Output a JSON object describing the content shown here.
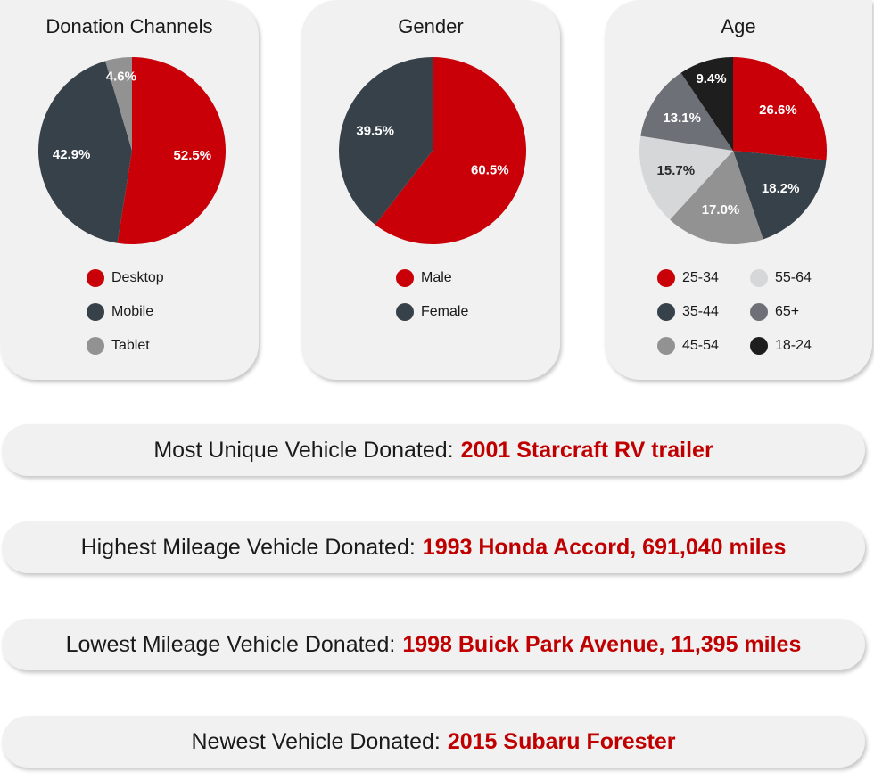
{
  "colors": {
    "red": "#c90008",
    "dark": "#37414a",
    "gray": "#929292",
    "light": "#d6d7d8",
    "slate": "#6d7177",
    "black": "#1e1e1e"
  },
  "chart_data": [
    {
      "type": "pie",
      "title": "Donation Channels",
      "slices": [
        {
          "label": "Desktop",
          "value": 52.5,
          "text": "52.5%",
          "color": "#c90008"
        },
        {
          "label": "Mobile",
          "value": 42.9,
          "text": "42.9%",
          "color": "#37414a"
        },
        {
          "label": "Tablet",
          "value": 4.6,
          "text": "4.6%",
          "color": "#929292"
        }
      ]
    },
    {
      "type": "pie",
      "title": "Gender",
      "slices": [
        {
          "label": "Male",
          "value": 60.5,
          "text": "60.5%",
          "color": "#c90008"
        },
        {
          "label": "Female",
          "value": 39.5,
          "text": "39.5%",
          "color": "#37414a"
        }
      ]
    },
    {
      "type": "pie",
      "title": "Age",
      "slices": [
        {
          "label": "25-34",
          "value": 26.6,
          "text": "26.6%",
          "color": "#c90008"
        },
        {
          "label": "35-44",
          "value": 18.2,
          "text": "18.2%",
          "color": "#37414a"
        },
        {
          "label": "45-54",
          "value": 17.0,
          "text": "17.0%",
          "color": "#929292"
        },
        {
          "label": "55-64",
          "value": 15.7,
          "text": "15.7%",
          "color": "#d6d7d8"
        },
        {
          "label": "65+",
          "value": 13.1,
          "text": "13.1%",
          "color": "#6d7177"
        },
        {
          "label": "18-24",
          "value": 9.4,
          "text": "9.4%",
          "color": "#1e1e1e"
        }
      ]
    }
  ],
  "facts": [
    {
      "label": "Most Unique Vehicle Donated:",
      "value": "2001 Starcraft RV trailer"
    },
    {
      "label": "Highest Mileage Vehicle Donated:",
      "value": "1993 Honda Accord, 691,040 miles"
    },
    {
      "label": "Lowest Mileage Vehicle Donated:",
      "value": "1998 Buick Park Avenue, 11,395 miles"
    },
    {
      "label": "Newest Vehicle Donated:",
      "value": "2015 Subaru Forester"
    }
  ]
}
